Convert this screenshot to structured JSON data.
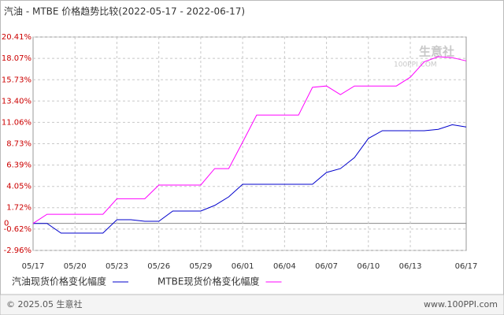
{
  "chart_data": {
    "type": "line",
    "title": "汽油 - MTBE 价格趋势比较(2022-05-17 - 2022-06-17)",
    "categories": [
      "05/17",
      null,
      null,
      "05/20",
      null,
      null,
      "05/23",
      null,
      null,
      "05/26",
      null,
      null,
      "05/29",
      null,
      null,
      "06/01",
      null,
      null,
      "06/04",
      null,
      null,
      "06/07",
      null,
      null,
      "06/10",
      null,
      null,
      "06/13",
      null,
      null,
      null,
      "06/17"
    ],
    "series": [
      {
        "name": "汽油现货价格变化幅度",
        "color": "#0000cc",
        "values": [
          0,
          0,
          -1.06,
          -1.06,
          -1.06,
          -1.06,
          0.4,
          0.4,
          0.23,
          0.23,
          1.35,
          1.35,
          1.35,
          1.96,
          2.9,
          4.28,
          4.28,
          4.28,
          4.28,
          4.28,
          4.28,
          5.58,
          6.0,
          7.2,
          9.3,
          10.15,
          10.15,
          10.15,
          10.15,
          10.3,
          10.8,
          10.55
        ]
      },
      {
        "name": "MTBE现货价格变化幅度",
        "color": "#ff00ff",
        "values": [
          0,
          1.0,
          1.0,
          1.0,
          1.0,
          1.0,
          2.7,
          2.7,
          2.7,
          4.2,
          4.2,
          4.2,
          4.2,
          6.0,
          6.0,
          8.9,
          11.86,
          11.86,
          11.86,
          11.86,
          14.9,
          15.05,
          14.1,
          15.05,
          15.05,
          15.05,
          15.05,
          16.0,
          17.7,
          18.25,
          18.15,
          17.8
        ]
      }
    ],
    "ylim": [
      -2.96,
      20.41
    ],
    "yticks": [
      {
        "value": -2.96,
        "label": "-2.96%"
      },
      {
        "value": -0.62,
        "label": "-0.62%"
      },
      {
        "value": 1.72,
        "label": "1.72%"
      },
      {
        "value": 4.05,
        "label": "4.05%"
      },
      {
        "value": 6.39,
        "label": "6.39%"
      },
      {
        "value": 8.73,
        "label": "8.73%"
      },
      {
        "value": 11.06,
        "label": "11.06%"
      },
      {
        "value": 13.4,
        "label": "13.40%"
      },
      {
        "value": 15.73,
        "label": "15.73%"
      },
      {
        "value": 18.07,
        "label": "18.07%"
      },
      {
        "value": 20.41,
        "label": "20.41%"
      }
    ],
    "baseline": {
      "value": 0,
      "label": "0"
    },
    "grid": true,
    "watermark": "生意社",
    "watermark_sub": "100PPI.COM",
    "footer_left": "© 2025.05 生意社",
    "footer_right": "www.100PPI.com"
  }
}
